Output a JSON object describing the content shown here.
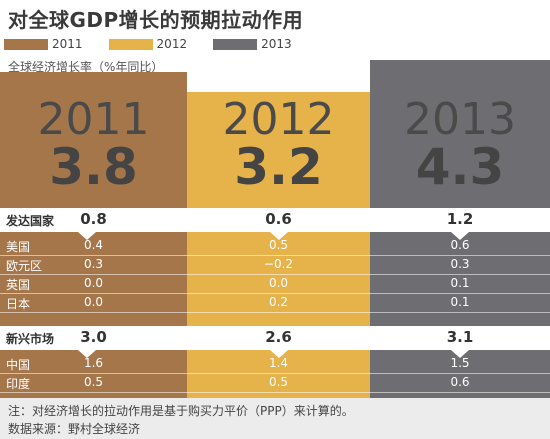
{
  "title": "对全球GDP增长的预期拉动作用",
  "subtitle": "全球经济增长率（%年同比）",
  "legend": [
    "2011",
    "2012",
    "2013"
  ],
  "colors": {
    "2011": "#a6764b",
    "2012": "#e6b24a",
    "2013": "#6e6e72"
  },
  "rows": [
    {
      "label": "发达国家",
      "kind": "header",
      "values": [
        "0.8",
        "0.6",
        "1.2"
      ]
    },
    {
      "label": "美国",
      "kind": "detail",
      "values": [
        "0.4",
        "0.5",
        "0.6"
      ]
    },
    {
      "label": "欧元区",
      "kind": "detail",
      "values": [
        "0.3",
        "−0.2",
        "0.3"
      ]
    },
    {
      "label": "英国",
      "kind": "detail",
      "values": [
        "0.0",
        "0.0",
        "0.1"
      ]
    },
    {
      "label": "日本",
      "kind": "detail",
      "values": [
        "0.0",
        "0.2",
        "0.1"
      ]
    },
    {
      "label": "新兴市场",
      "kind": "header",
      "values": [
        "3.0",
        "2.6",
        "3.1"
      ]
    },
    {
      "label": "中国",
      "kind": "detail",
      "values": [
        "1.6",
        "1.4",
        "1.5"
      ]
    },
    {
      "label": "印度",
      "kind": "detail",
      "values": [
        "0.5",
        "0.5",
        "0.6"
      ]
    }
  ],
  "footnote": "注：对经济增长的拉动作用是基于购买力平价（PPP）来计算的。",
  "source": "数据来源：野村全球经济",
  "chart_data": {
    "type": "table",
    "title": "对全球GDP增长的预期拉动作用",
    "subtitle": "全球经济增长率（%年同比）",
    "columns": [
      "2011",
      "2012",
      "2013"
    ],
    "global_growth": [
      3.8,
      3.2,
      4.3
    ],
    "rows": [
      {
        "label": "发达国家",
        "values": [
          0.8,
          0.6,
          1.2
        ]
      },
      {
        "label": "美国",
        "values": [
          0.4,
          0.5,
          0.6
        ]
      },
      {
        "label": "欧元区",
        "values": [
          0.3,
          -0.2,
          0.3
        ]
      },
      {
        "label": "英国",
        "values": [
          0.0,
          0.0,
          0.1
        ]
      },
      {
        "label": "日本",
        "values": [
          0.0,
          0.2,
          0.1
        ]
      },
      {
        "label": "新兴市场",
        "values": [
          3.0,
          2.6,
          3.1
        ]
      },
      {
        "label": "中国",
        "values": [
          1.6,
          1.4,
          1.5
        ]
      },
      {
        "label": "印度",
        "values": [
          0.5,
          0.5,
          0.6
        ]
      }
    ]
  }
}
